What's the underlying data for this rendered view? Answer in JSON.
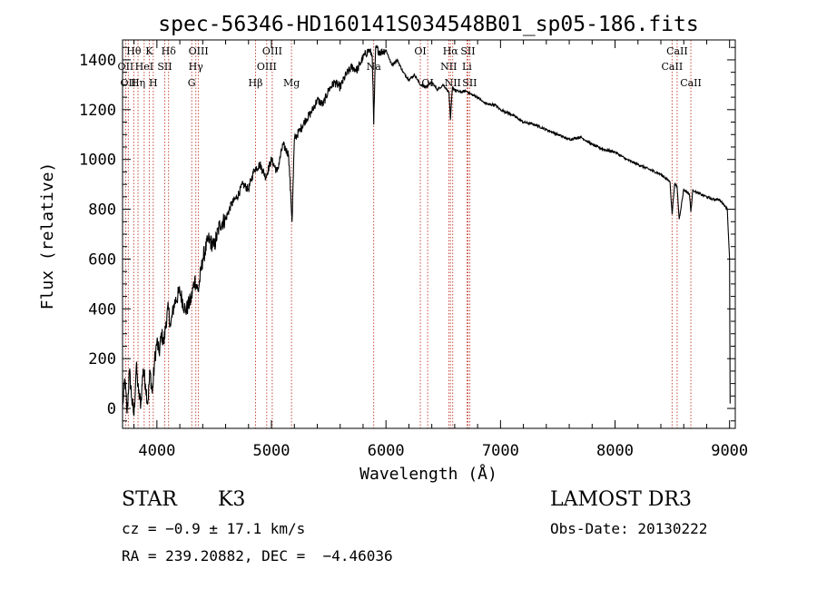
{
  "chart_data": {
    "type": "line",
    "title": "spec-56346-HD160141S034548B01_sp05-186.fits",
    "xlabel": "Wavelength (Å)",
    "ylabel": "Flux (relative)",
    "xlim": [
      3700,
      9050
    ],
    "ylim": [
      -80,
      1480
    ],
    "xticks": [
      4000,
      5000,
      6000,
      7000,
      8000,
      9000
    ],
    "yticks": [
      0,
      200,
      400,
      600,
      800,
      1000,
      1200,
      1400
    ],
    "series": [
      {
        "name": "spectrum",
        "x": [
          3700,
          3720,
          3740,
          3760,
          3780,
          3800,
          3820,
          3840,
          3860,
          3880,
          3900,
          3920,
          3940,
          3960,
          3980,
          4000,
          4020,
          4040,
          4060,
          4080,
          4100,
          4120,
          4150,
          4200,
          4250,
          4300,
          4330,
          4360,
          4400,
          4450,
          4500,
          4550,
          4600,
          4650,
          4700,
          4750,
          4800,
          4850,
          4900,
          4950,
          5000,
          5050,
          5100,
          5150,
          5180,
          5200,
          5250,
          5300,
          5350,
          5400,
          5450,
          5500,
          5550,
          5600,
          5650,
          5700,
          5750,
          5800,
          5850,
          5880,
          5893,
          5910,
          5950,
          6000,
          6050,
          6100,
          6150,
          6200,
          6250,
          6300,
          6350,
          6400,
          6450,
          6500,
          6550,
          6563,
          6580,
          6600,
          6650,
          6700,
          6750,
          6800,
          6850,
          6900,
          6950,
          7000,
          7100,
          7200,
          7300,
          7400,
          7500,
          7600,
          7700,
          7800,
          7900,
          8000,
          8100,
          8200,
          8300,
          8400,
          8480,
          8498,
          8520,
          8542,
          8560,
          8600,
          8650,
          8662,
          8680,
          8700,
          8750,
          8800,
          8850,
          8900,
          8950,
          8980,
          9000,
          9005
        ],
        "values": [
          0,
          120,
          -20,
          150,
          40,
          -30,
          170,
          60,
          20,
          160,
          100,
          20,
          150,
          60,
          190,
          270,
          220,
          300,
          260,
          350,
          400,
          330,
          420,
          470,
          390,
          440,
          520,
          470,
          600,
          680,
          650,
          740,
          760,
          820,
          850,
          900,
          880,
          960,
          980,
          930,
          1000,
          950,
          1060,
          1020,
          750,
          1080,
          1120,
          1160,
          1190,
          1240,
          1220,
          1280,
          1310,
          1290,
          1340,
          1370,
          1360,
          1410,
          1440,
          1420,
          1140,
          1450,
          1430,
          1440,
          1380,
          1400,
          1350,
          1320,
          1340,
          1300,
          1290,
          1310,
          1280,
          1300,
          1270,
          1160,
          1290,
          1280,
          1270,
          1275,
          1260,
          1250,
          1230,
          1220,
          1220,
          1200,
          1180,
          1150,
          1140,
          1120,
          1100,
          1080,
          1090,
          1060,
          1040,
          1030,
          1000,
          980,
          960,
          940,
          910,
          780,
          900,
          890,
          760,
          880,
          860,
          790,
          880,
          870,
          860,
          850,
          840,
          840,
          820,
          800,
          600,
          20
        ]
      }
    ],
    "lines": [
      {
        "wave": 3727,
        "label": "OII",
        "row": 1
      },
      {
        "wave": 3750,
        "label": "OII",
        "row": 2
      },
      {
        "wave": 3798,
        "label": "Hθ",
        "row": 0
      },
      {
        "wave": 3835,
        "label": "Hη",
        "row": 2
      },
      {
        "wave": 3889,
        "label": "HeI",
        "row": 1
      },
      {
        "wave": 3933,
        "label": "K",
        "row": 0
      },
      {
        "wave": 3968,
        "label": "H",
        "row": 2
      },
      {
        "wave": 4068,
        "label": "SII",
        "row": 1
      },
      {
        "wave": 4102,
        "label": "Hδ",
        "row": 0
      },
      {
        "wave": 4304,
        "label": "G",
        "row": 2
      },
      {
        "wave": 4340,
        "label": "Hγ",
        "row": 1
      },
      {
        "wave": 4363,
        "label": "OIII",
        "row": 0
      },
      {
        "wave": 4861,
        "label": "Hβ",
        "row": 2
      },
      {
        "wave": 4959,
        "label": "OIII",
        "row": 1
      },
      {
        "wave": 5007,
        "label": "OIII",
        "row": 0
      },
      {
        "wave": 5175,
        "label": "Mg",
        "row": 2
      },
      {
        "wave": 5893,
        "label": "Na",
        "row": 1
      },
      {
        "wave": 6300,
        "label": "OI",
        "row": 0
      },
      {
        "wave": 6364,
        "label": "OI",
        "row": 2
      },
      {
        "wave": 6548,
        "label": "NII",
        "row": 1
      },
      {
        "wave": 6563,
        "label": "Hα",
        "row": 0
      },
      {
        "wave": 6583,
        "label": "NII",
        "row": 2
      },
      {
        "wave": 6707,
        "label": "Li",
        "row": 1
      },
      {
        "wave": 6716,
        "label": "SII",
        "row": 0
      },
      {
        "wave": 6731,
        "label": "SII",
        "row": 2
      },
      {
        "wave": 8498,
        "label": "CaII",
        "row": 1
      },
      {
        "wave": 8542,
        "label": "CaII",
        "row": 0
      },
      {
        "wave": 8662,
        "label": "CaII",
        "row": 2
      }
    ],
    "line_color": "#c0392b"
  },
  "info": {
    "class_label": "STAR",
    "subclass": "K3",
    "survey": "LAMOST DR3",
    "cz": "cz = −0.9 ± 17.1 km/s",
    "obs_date": "Obs-Date: 20130222",
    "radec": "RA = 239.20882, DEC =  −4.46036"
  }
}
